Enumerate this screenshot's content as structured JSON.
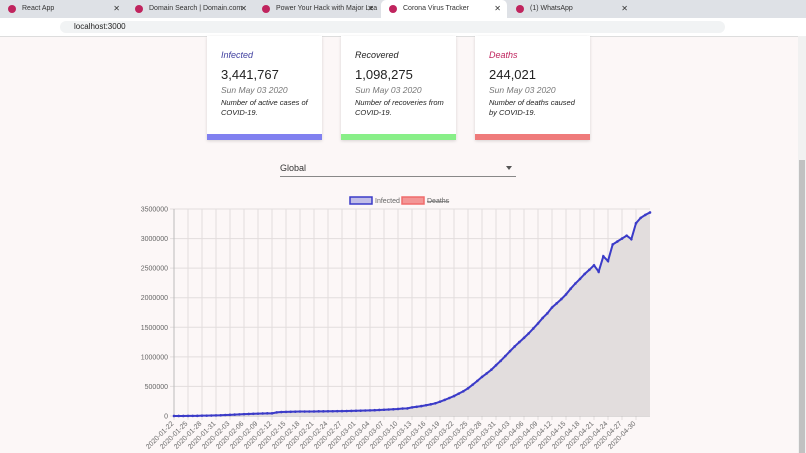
{
  "browser": {
    "tabs": [
      "React App",
      "Domain Search | Domain.com",
      "Power Your Hack with Major Lea",
      "Corona Virus Tracker",
      "(1) WhatsApp"
    ],
    "active_tab": 3,
    "url": "localhost:3000"
  },
  "cards": [
    {
      "title": "Infected",
      "value": "3,441,767",
      "date": "Sun May 03 2020",
      "description": "Number of active cases of COVID-19.",
      "color": "#8080f0"
    },
    {
      "title": "Recovered",
      "value": "1,098,275",
      "date": "Sun May 03 2020",
      "description": "Number of recoveries from COVID-19.",
      "color": "#88ef88"
    },
    {
      "title": "Deaths",
      "value": "244,021",
      "date": "Sun May 03 2020",
      "description": "Number of deaths caused by COVID-19.",
      "color": "#ef7b7b"
    }
  ],
  "selector": {
    "value": "Global"
  },
  "chart_data": {
    "type": "line",
    "categories": [
      "2020-01-22",
      null,
      null,
      "2020-01-25",
      null,
      null,
      "2020-01-28",
      null,
      null,
      "2020-01-31",
      null,
      null,
      "2020-02-03",
      null,
      null,
      "2020-02-06",
      null,
      null,
      "2020-02-09",
      null,
      null,
      "2020-02-12",
      null,
      null,
      "2020-02-15",
      null,
      null,
      "2020-02-18",
      null,
      null,
      "2020-02-21",
      null,
      null,
      "2020-02-24",
      null,
      null,
      "2020-02-27",
      null,
      null,
      "2020-03-01",
      null,
      null,
      "2020-03-04",
      null,
      null,
      "2020-03-07",
      null,
      null,
      "2020-03-10",
      null,
      null,
      "2020-03-13",
      null,
      null,
      "2020-03-16",
      null,
      null,
      "2020-03-19",
      null,
      null,
      "2020-03-22",
      null,
      null,
      "2020-03-25",
      null,
      null,
      "2020-03-28",
      null,
      null,
      "2020-03-31",
      null,
      null,
      "2020-04-03",
      null,
      null,
      "2020-04-06",
      null,
      null,
      "2020-04-09",
      null,
      null,
      "2020-04-12",
      null,
      null,
      "2020-04-15",
      null,
      null,
      "2020-04-18",
      null,
      null,
      "2020-04-21",
      null,
      null,
      "2020-04-24",
      null,
      null,
      "2020-04-27",
      null,
      null,
      "2020-04-30",
      null,
      null,
      null
    ],
    "series": [
      {
        "name": "Infected",
        "color": "#3b3bc8",
        "fill_color": "#e2dddd",
        "values": [
          555,
          654,
          941,
          1434,
          2118,
          2927,
          5578,
          6166,
          8234,
          9927,
          12038,
          16787,
          19881,
          23892,
          27635,
          30794,
          34391,
          37120,
          40150,
          42762,
          44802,
          45221,
          60368,
          66885,
          69030,
          71224,
          73258,
          75136,
          75639,
          76197,
          76819,
          78572,
          78958,
          79561,
          80406,
          81388,
          82746,
          84112,
          86011,
          88369,
          90306,
          92840,
          95120,
          97886,
          101801,
          105847,
          109821,
          113590,
          118620,
          125875,
          128352,
          145205,
          156101,
          167454,
          181574,
          197102,
          214821,
          242570,
          272208,
          304507,
          336953,
          378235,
          418045,
          467653,
          529591,
          593291,
          660706,
          720117,
          782365,
          857487,
          932605,
          1013466,
          1095917,
          1176060,
          1249754,
          1321481,
          1396476,
          1479804,
          1565278,
          1657526,
          1735650,
          1834721,
          1904838,
          1976191,
          2056054,
          2152437,
          2240190,
          2317759,
          2401379,
          2472259,
          2549123,
          2440000,
          2700000,
          2620000,
          2900000,
          2950000,
          3000000,
          3050000,
          2990000,
          3260000,
          3350000,
          3400000,
          3441767
        ]
      },
      {
        "name": "Deaths",
        "color": "#f06c6c",
        "hidden": true
      }
    ],
    "ylim": [
      0,
      3500000
    ],
    "yticks": [
      0,
      500000,
      1000000,
      1500000,
      2000000,
      2500000,
      3000000,
      3500000
    ],
    "grid": true
  }
}
